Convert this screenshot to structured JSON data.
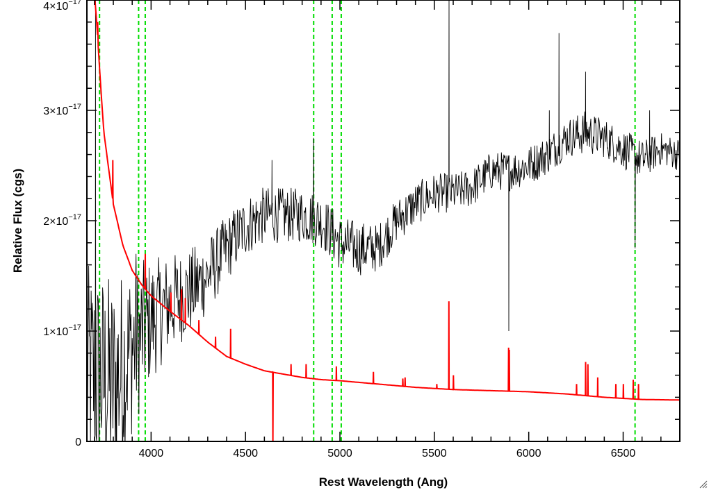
{
  "chart_data": {
    "type": "line",
    "xlabel": "Rest Wavelength (Ang)",
    "ylabel": "Relative Flux (cgs)",
    "xlim": [
      3660,
      6800
    ],
    "ylim": [
      0,
      4e-17
    ],
    "x_ticks": [
      4000,
      4500,
      5000,
      5500,
      6000,
      6500
    ],
    "x_tick_labels": [
      "4000",
      "4500",
      "5000",
      "5500",
      "6000",
      "6500"
    ],
    "y_ticks": [
      0,
      1e-17,
      2e-17,
      3e-17,
      4e-17
    ],
    "y_tick_labels": [
      {
        "mantissa": "0",
        "exponent": ""
      },
      {
        "mantissa": "1×10",
        "exponent": "−17"
      },
      {
        "mantissa": "2×10",
        "exponent": "−17"
      },
      {
        "mantissa": "3×10",
        "exponent": "−17"
      },
      {
        "mantissa": "4×10",
        "exponent": "−17"
      }
    ],
    "grid": false,
    "series": [
      {
        "color": "#000000",
        "style": "noisy",
        "x": [
          3700,
          3800,
          3900,
          4000,
          4100,
          4200,
          4300,
          4400,
          4500,
          4600,
          4700,
          4800,
          4900,
          5000,
          5100,
          5200,
          5300,
          5400,
          5500,
          5600,
          5700,
          5800,
          5900,
          6000,
          6100,
          6200,
          6300,
          6400,
          6500,
          6600,
          6700,
          6800
        ],
        "y": [
          6e-18,
          5e-18,
          8.5e-18,
          1.1e-17,
          1.25e-17,
          1.35e-17,
          1.5e-17,
          1.75e-17,
          1.95e-17,
          2.05e-17,
          2.05e-17,
          2.05e-17,
          2e-17,
          1.8e-17,
          1.75e-17,
          1.75e-17,
          2e-17,
          2.15e-17,
          2.25e-17,
          2.25e-17,
          2.3e-17,
          2.45e-17,
          2.45e-17,
          2.5e-17,
          2.6e-17,
          2.75e-17,
          2.8e-17,
          2.75e-17,
          2.65e-17,
          2.55e-17,
          2.65e-17,
          2.6e-17
        ],
        "noise": [
          1e-17,
          1e-17,
          8e-18,
          5.5e-18,
          4.5e-18,
          4e-18,
          3.5e-18,
          3e-18,
          2.8e-18,
          2.6e-18,
          2.5e-18,
          2.5e-18,
          2.5e-18,
          2.5e-18,
          2.5e-18,
          2.2e-18,
          2e-18,
          2e-18,
          1.8e-18,
          1.8e-18,
          1.8e-18,
          1.8e-18,
          1.8e-18,
          1.8e-18,
          1.8e-18,
          1.8e-18,
          2e-18,
          1.8e-18,
          1.8e-18,
          1.8e-18,
          1.5e-18,
          1.5e-18
        ],
        "spikes": [
          {
            "x": 3705,
            "y": 4e-17
          },
          {
            "x": 3920,
            "y": 1.7e-17
          },
          {
            "x": 4640,
            "y": 2.55e-17
          },
          {
            "x": 4860,
            "y": 2.75e-17
          },
          {
            "x": 5577,
            "y": 4e-17
          },
          {
            "x": 5893,
            "y": 1e-17
          },
          {
            "x": 6110,
            "y": 3e-17
          },
          {
            "x": 6160,
            "y": 3.7e-17
          },
          {
            "x": 6300,
            "y": 3.35e-17
          },
          {
            "x": 6563,
            "y": 1.75e-17
          },
          {
            "x": 6640,
            "y": 3e-17
          }
        ]
      },
      {
        "color": "#ff0000",
        "style": "smooth",
        "x": [
          3700,
          3710,
          3730,
          3750,
          3800,
          3850,
          3900,
          3950,
          4000,
          4100,
          4200,
          4300,
          4400,
          4500,
          4600,
          4700,
          4800,
          4900,
          5000,
          5200,
          5400,
          5600,
          5800,
          6000,
          6200,
          6400,
          6600,
          6800
        ],
        "y": [
          4.05e-17,
          3.85e-17,
          3.3e-17,
          2.8e-17,
          2.15e-17,
          1.78e-17,
          1.55e-17,
          1.42e-17,
          1.32e-17,
          1.18e-17,
          1.05e-17,
          9e-18,
          7.7e-18,
          7e-18,
          6.4e-18,
          6.1e-18,
          5.8e-18,
          5.6e-18,
          5.5e-18,
          5.2e-18,
          4.9e-18,
          4.7e-18,
          4.6e-18,
          4.5e-18,
          4.3e-18,
          4e-18,
          3.8e-18,
          3.75e-18
        ],
        "spikes": [
          {
            "x": 3715,
            "y": 3.8e-17
          },
          {
            "x": 3795,
            "y": 2.55e-17
          },
          {
            "x": 3969,
            "y": 1.7e-17
          },
          {
            "x": 4102,
            "y": 1.35e-17
          },
          {
            "x": 4160,
            "y": 1.38e-17
          },
          {
            "x": 4180,
            "y": 1.3e-17
          },
          {
            "x": 4250,
            "y": 1.1e-17
          },
          {
            "x": 4340,
            "y": 9.5e-18
          },
          {
            "x": 4420,
            "y": 1.02e-17
          },
          {
            "x": 4645,
            "y": -5e-19
          },
          {
            "x": 4740,
            "y": 7e-18
          },
          {
            "x": 4820,
            "y": 7e-18
          },
          {
            "x": 4980,
            "y": 6.8e-18
          },
          {
            "x": 5175,
            "y": 6.3e-18
          },
          {
            "x": 5330,
            "y": 5.7e-18
          },
          {
            "x": 5345,
            "y": 5.8e-18
          },
          {
            "x": 5510,
            "y": 5.2e-18
          },
          {
            "x": 5577,
            "y": 1.27e-17
          },
          {
            "x": 5600,
            "y": 6e-18
          },
          {
            "x": 5890,
            "y": 8.5e-18
          },
          {
            "x": 5895,
            "y": 8.3e-18
          },
          {
            "x": 6250,
            "y": 5.2e-18
          },
          {
            "x": 6300,
            "y": 7.2e-18
          },
          {
            "x": 6310,
            "y": 7e-18
          },
          {
            "x": 6365,
            "y": 5.8e-18
          },
          {
            "x": 6460,
            "y": 5.2e-18
          },
          {
            "x": 6500,
            "y": 5.2e-18
          },
          {
            "x": 6550,
            "y": 5.6e-18
          },
          {
            "x": 6580,
            "y": 5.2e-18
          }
        ]
      }
    ],
    "vlines": {
      "color": "#00dd00",
      "style": "dashed",
      "x": [
        3727,
        3934,
        3969,
        4861,
        4959,
        5007,
        6563
      ]
    }
  }
}
